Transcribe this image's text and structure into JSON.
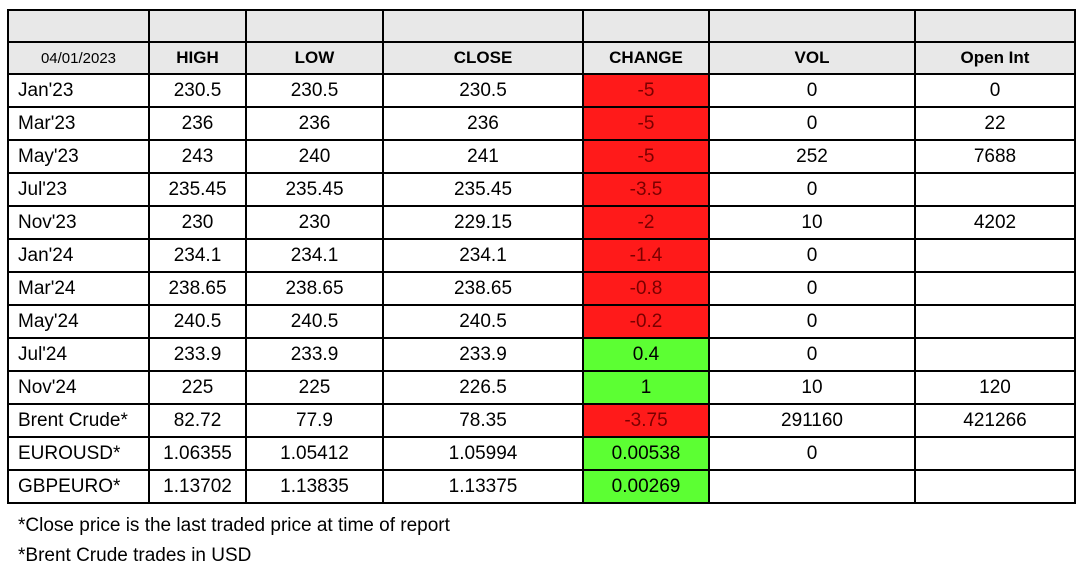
{
  "table": {
    "date": "04/01/2023",
    "headers": [
      "HIGH",
      "LOW",
      "CLOSE",
      "CHANGE",
      "VOL",
      "Open Int"
    ],
    "rows": [
      {
        "contract": "Jan'23",
        "high": "230.5",
        "low": "230.5",
        "close": "230.5",
        "change": "-5",
        "change_sign": "neg",
        "vol": "0",
        "open_int": "0"
      },
      {
        "contract": "Mar'23",
        "high": "236",
        "low": "236",
        "close": "236",
        "change": "-5",
        "change_sign": "neg",
        "vol": "0",
        "open_int": "22"
      },
      {
        "contract": "May'23",
        "high": "243",
        "low": "240",
        "close": "241",
        "change": "-5",
        "change_sign": "neg",
        "vol": "252",
        "open_int": "7688"
      },
      {
        "contract": "Jul'23",
        "high": "235.45",
        "low": "235.45",
        "close": "235.45",
        "change": "-3.5",
        "change_sign": "neg",
        "vol": "0",
        "open_int": ""
      },
      {
        "contract": "Nov'23",
        "high": "230",
        "low": "230",
        "close": "229.15",
        "change": "-2",
        "change_sign": "neg",
        "vol": "10",
        "open_int": "4202"
      },
      {
        "contract": "Jan'24",
        "high": "234.1",
        "low": "234.1",
        "close": "234.1",
        "change": "-1.4",
        "change_sign": "neg",
        "vol": "0",
        "open_int": ""
      },
      {
        "contract": "Mar'24",
        "high": "238.65",
        "low": "238.65",
        "close": "238.65",
        "change": "-0.8",
        "change_sign": "neg",
        "vol": "0",
        "open_int": ""
      },
      {
        "contract": "May'24",
        "high": "240.5",
        "low": "240.5",
        "close": "240.5",
        "change": "-0.2",
        "change_sign": "neg",
        "vol": "0",
        "open_int": ""
      },
      {
        "contract": "Jul'24",
        "high": "233.9",
        "low": "233.9",
        "close": "233.9",
        "change": "0.4",
        "change_sign": "pos",
        "vol": "0",
        "open_int": ""
      },
      {
        "contract": "Nov'24",
        "high": "225",
        "low": "225",
        "close": "226.5",
        "change": "1",
        "change_sign": "pos",
        "vol": "10",
        "open_int": "120"
      },
      {
        "contract": "Brent Crude*",
        "high": "82.72",
        "low": "77.9",
        "close": "78.35",
        "change": "-3.75",
        "change_sign": "neg",
        "vol": "291160",
        "open_int": "421266"
      },
      {
        "contract": "EUROUSD*",
        "high": "1.06355",
        "low": "1.05412",
        "close": "1.05994",
        "change": "0.00538",
        "change_sign": "pos",
        "vol": "0",
        "open_int": ""
      },
      {
        "contract": "GBPEURO*",
        "high": "1.13702",
        "low": "1.13835",
        "close": "1.13375",
        "change": "0.00269",
        "change_sign": "pos",
        "vol": "",
        "open_int": ""
      }
    ]
  },
  "colors": {
    "negative_fill": "#ff1a1a",
    "positive_fill": "#5cff33",
    "header_fill": "#e8e8e8"
  },
  "footnotes": [
    "*Close price is the last traded price at time of report",
    "*Brent Crude trades in USD"
  ]
}
